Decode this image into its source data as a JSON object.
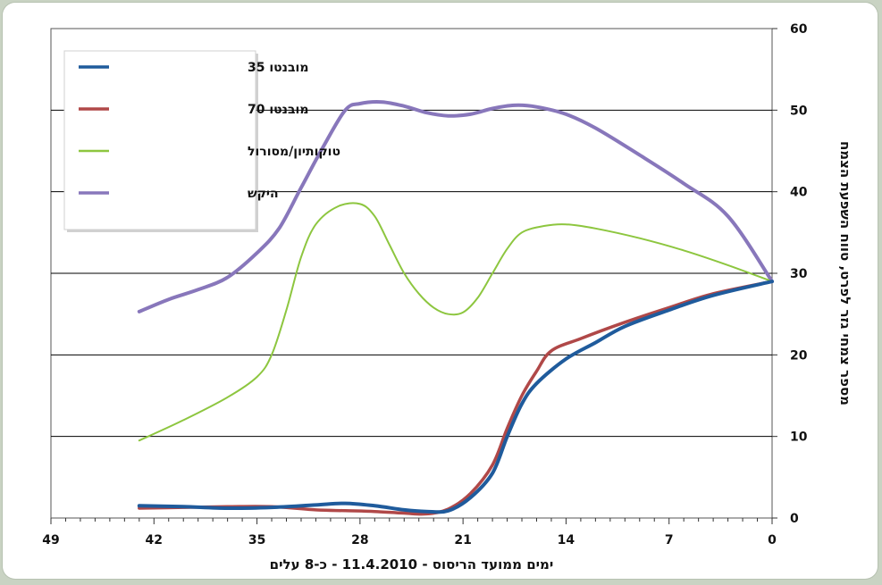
{
  "chart_data": {
    "type": "line",
    "xlabel": "ימים ממועד הריסוס - 11.4.2010 - כ-8 עלים",
    "ylabel": "מספר צמחי גזר לפרט, טווח השפעת הצמח",
    "x_axis": {
      "min": 0,
      "max": 49,
      "reversed": true,
      "ticks": [
        49,
        42,
        35,
        28,
        21,
        14,
        7,
        0
      ]
    },
    "y_axis": {
      "min": 0,
      "max": 60,
      "ticks": [
        0,
        10,
        20,
        30,
        40,
        50,
        60
      ],
      "position": "right"
    },
    "grid": true,
    "legend_position": "top-left",
    "series": [
      {
        "name": "מובנטו 35",
        "color": "#1f5b9c",
        "points": [
          [
            43,
            1.5
          ],
          [
            40,
            1.4
          ],
          [
            37,
            1.2
          ],
          [
            34,
            1.3
          ],
          [
            31,
            1.6
          ],
          [
            29,
            1.8
          ],
          [
            27,
            1.5
          ],
          [
            25,
            1.0
          ],
          [
            23.5,
            0.8
          ],
          [
            22,
            0.9
          ],
          [
            20.5,
            2.5
          ],
          [
            19,
            5.5
          ],
          [
            18,
            10
          ],
          [
            17,
            14
          ],
          [
            16,
            16.5
          ],
          [
            14,
            19.5
          ],
          [
            12,
            21.5
          ],
          [
            10,
            23.5
          ],
          [
            7,
            25.5
          ],
          [
            4,
            27.3
          ],
          [
            0,
            29
          ]
        ]
      },
      {
        "name": "מובנטו 70",
        "color": "#b04848",
        "points": [
          [
            43,
            1.2
          ],
          [
            40,
            1.3
          ],
          [
            37,
            1.4
          ],
          [
            34,
            1.4
          ],
          [
            31,
            1.0
          ],
          [
            29,
            0.9
          ],
          [
            27,
            0.8
          ],
          [
            25,
            0.6
          ],
          [
            23.5,
            0.5
          ],
          [
            22,
            1.1
          ],
          [
            20.5,
            3.0
          ],
          [
            19,
            6.5
          ],
          [
            18,
            11
          ],
          [
            17,
            15
          ],
          [
            16,
            18
          ],
          [
            15,
            20.5
          ],
          [
            13,
            22
          ],
          [
            10,
            24
          ],
          [
            7,
            25.8
          ],
          [
            4,
            27.5
          ],
          [
            0,
            29
          ]
        ]
      },
      {
        "name": "טוקותיון/מסורול",
        "color": "#8dc63f",
        "points": [
          [
            43,
            9.5
          ],
          [
            40,
            12
          ],
          [
            37,
            14.8
          ],
          [
            35,
            17.3
          ],
          [
            34,
            20
          ],
          [
            33,
            25.5
          ],
          [
            32,
            32
          ],
          [
            31,
            36
          ],
          [
            29.5,
            38.2
          ],
          [
            28,
            38.5
          ],
          [
            27,
            37
          ],
          [
            26,
            33.5
          ],
          [
            25,
            30
          ],
          [
            24,
            27.5
          ],
          [
            23,
            25.8
          ],
          [
            22,
            25
          ],
          [
            21,
            25.2
          ],
          [
            20,
            27
          ],
          [
            19,
            30
          ],
          [
            18,
            33
          ],
          [
            17,
            35
          ],
          [
            15.5,
            35.8
          ],
          [
            14,
            36
          ],
          [
            12,
            35.5
          ],
          [
            9,
            34.3
          ],
          [
            6,
            32.8
          ],
          [
            3,
            31
          ],
          [
            0,
            29
          ]
        ]
      },
      {
        "name": "היקש",
        "color": "#8877bb",
        "points": [
          [
            43,
            25.3
          ],
          [
            41,
            26.8
          ],
          [
            39,
            28
          ],
          [
            37,
            29.5
          ],
          [
            35,
            32.5
          ],
          [
            33.5,
            35.5
          ],
          [
            32,
            40.5
          ],
          [
            30.5,
            45.5
          ],
          [
            29,
            50
          ],
          [
            28,
            50.8
          ],
          [
            26.5,
            51
          ],
          [
            25,
            50.5
          ],
          [
            23.5,
            49.7
          ],
          [
            22,
            49.3
          ],
          [
            20.5,
            49.5
          ],
          [
            19,
            50.2
          ],
          [
            17.5,
            50.6
          ],
          [
            16,
            50.4
          ],
          [
            14,
            49.5
          ],
          [
            12,
            47.8
          ],
          [
            9,
            44.5
          ],
          [
            6,
            41
          ],
          [
            3,
            37
          ],
          [
            0,
            29
          ]
        ]
      }
    ]
  }
}
